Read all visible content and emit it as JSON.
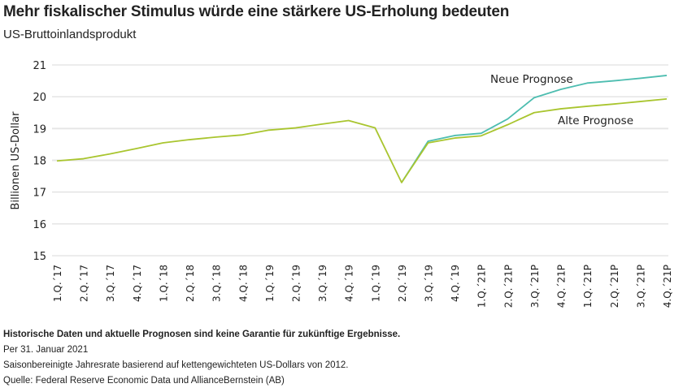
{
  "title": "Mehr fiskalischer Stimulus würde eine stärkere US-Erholung bedeuten",
  "subtitle": "US-Bruttoinlandsprodukt",
  "footnotes": {
    "disclaimer": "Historische Daten und aktuelle Prognosen sind keine Garantie für zukünftige Ergebnisse.",
    "date": "Per 31. Januar 2021",
    "note": "Saisonbereinigte Jahresrate basierend auf kettengewichteten US-Dollars von 2012.",
    "source": "Quelle: Federal Reserve Economic Data und AllianceBernstein (AB)"
  },
  "chart_data": {
    "type": "line",
    "title": "Mehr fiskalischer Stimulus würde eine stärkere US-Erholung bedeuten",
    "subtitle": "US-Bruttoinlandsprodukt",
    "ylabel": "Billionen US-Dollar",
    "xlabel": "",
    "ylim": [
      15,
      21
    ],
    "yticks": [
      15,
      16,
      17,
      18,
      19,
      20,
      21
    ],
    "grid": true,
    "categories": [
      "1.Q.´17",
      "2.Q.´17",
      "3.Q.´17",
      "4.Q.´17",
      "1.Q.´18",
      "2.Q.´18",
      "3.Q.´18",
      "4.Q.´18",
      "1.Q.´19",
      "2.Q.´19",
      "3.Q.´19",
      "4.Q.´19",
      "1.Q.´19",
      "2.Q.´19",
      "3.Q.´19",
      "4.Q.´19",
      "1.Q.´21P",
      "2.Q.´21P",
      "3.Q.´21P",
      "4.Q.´21P",
      "1.Q.´21P",
      "2.Q.´21P",
      "3.Q.´21P",
      "4.Q.´21P"
    ],
    "series": [
      {
        "name": "Alte Prognose",
        "color": "#a9c52f",
        "values": [
          17.98,
          18.05,
          18.2,
          18.37,
          18.55,
          18.65,
          18.73,
          18.8,
          18.95,
          19.02,
          19.14,
          19.25,
          19.02,
          17.3,
          18.55,
          18.7,
          18.77,
          19.12,
          19.5,
          19.62,
          19.7,
          19.77,
          19.85,
          19.93
        ]
      },
      {
        "name": "Neue Prognose",
        "color": "#4dbdb0",
        "values": [
          null,
          null,
          null,
          null,
          null,
          null,
          null,
          null,
          null,
          null,
          null,
          null,
          null,
          17.3,
          18.6,
          18.78,
          18.85,
          19.3,
          19.97,
          20.23,
          20.43,
          20.5,
          20.58,
          20.67
        ]
      }
    ]
  }
}
